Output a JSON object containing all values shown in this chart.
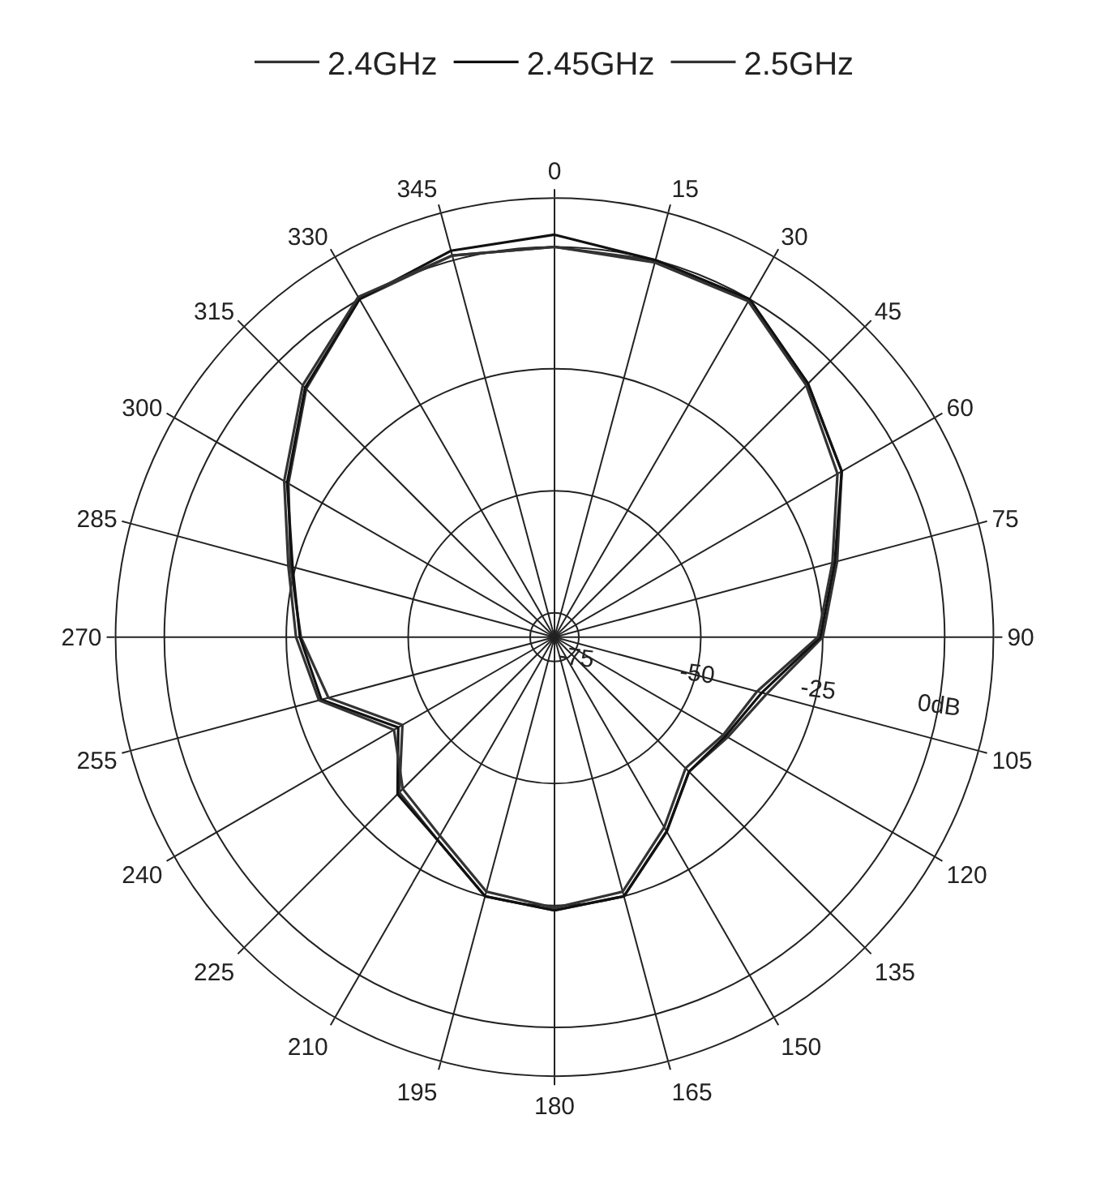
{
  "chart_data": {
    "type": "radar",
    "categories": [
      "0",
      "15",
      "30",
      "45",
      "60",
      "75",
      "90",
      "105",
      "120",
      "135",
      "150",
      "165",
      "180",
      "195",
      "210",
      "225",
      "240",
      "255",
      "270",
      "285",
      "300",
      "315",
      "330",
      "345"
    ],
    "series": [
      {
        "name": "2.4GHz",
        "color": "#333333",
        "values": [
          0,
          0,
          0,
          -6.5,
          -12,
          -20,
          -25,
          -35,
          -39,
          -41,
          -34,
          -25,
          -24,
          -25,
          -32,
          -35,
          -44,
          -32,
          -28,
          -24,
          -17,
          -8,
          0,
          1
        ]
      },
      {
        "name": "2.45GHz",
        "color": "#111111",
        "values": [
          2.5,
          0,
          0,
          -6.5,
          -12,
          -20.5,
          -25.5,
          -36,
          -39.5,
          -41,
          -34,
          -25,
          -24,
          -25,
          -32,
          -34.5,
          -43,
          -30.5,
          -27.8,
          -24.4,
          -16.7,
          -7.7,
          0,
          2
        ]
      },
      {
        "name": "2.5GHz",
        "color": "#333333",
        "values": [
          0,
          -0.5,
          -0.5,
          -7,
          -13,
          -21,
          -26,
          -37,
          -40,
          -42,
          -35,
          -26,
          -24.5,
          -26,
          -33,
          -36,
          -42,
          -30,
          -27,
          -23.5,
          -16,
          -7,
          0.5,
          1
        ]
      }
    ],
    "ylim": [
      -80,
      10
    ],
    "yticks": [
      -75,
      -50,
      -25,
      {
        "value": 0,
        "label": "0dB"
      }
    ],
    "grid": true,
    "legend": "top",
    "line_style": "solid",
    "marker": "none"
  }
}
